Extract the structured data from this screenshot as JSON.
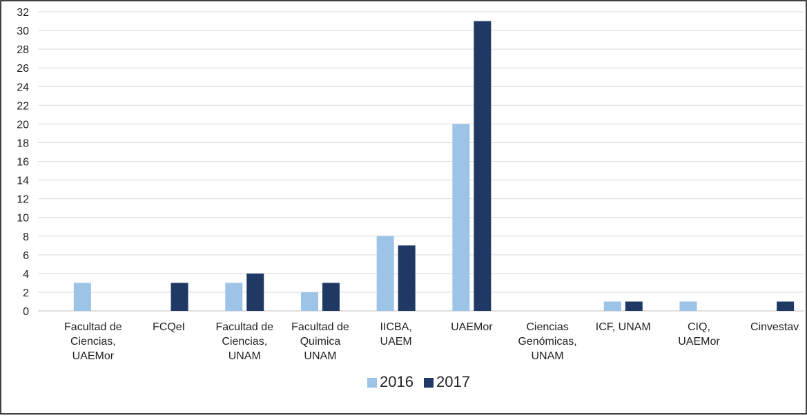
{
  "chart_data": {
    "type": "bar",
    "categories": [
      "Facultad de\nCiencias,\nUAEMor",
      "FCQeI",
      "Facultad de\nCiencias,\nUNAM",
      "Facultad de\nQuimica\nUNAM",
      "IICBA,\nUAEM",
      "UAEMor",
      "Ciencias\nGenómicas,\nUNAM",
      "ICF, UNAM",
      "CIQ,\nUAEMor",
      "Cinvestav"
    ],
    "series": [
      {
        "name": "2016",
        "color": "#9dc3e6",
        "values": [
          3,
          0,
          3,
          2,
          8,
          20,
          0,
          1,
          1,
          0
        ]
      },
      {
        "name": "2017",
        "color": "#203864",
        "values": [
          0,
          3,
          4,
          3,
          7,
          31,
          0,
          1,
          0,
          1
        ]
      }
    ],
    "ylim": [
      0,
      32
    ],
    "yticks": [
      0,
      2,
      4,
      6,
      8,
      10,
      12,
      14,
      16,
      18,
      20,
      22,
      24,
      26,
      28,
      30,
      32
    ],
    "grid": true,
    "legend": "bottom"
  }
}
